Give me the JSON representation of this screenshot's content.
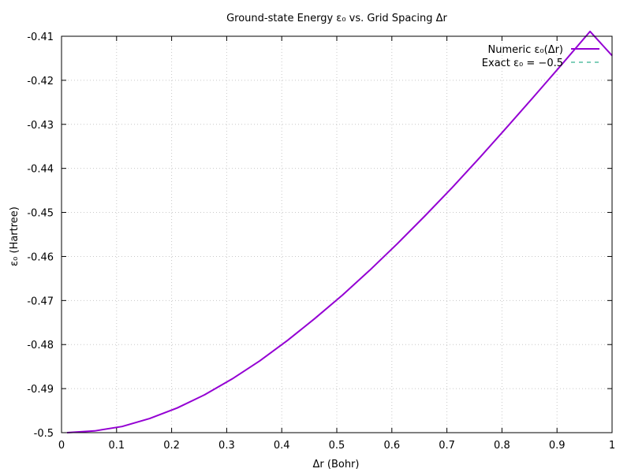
{
  "chart_data": {
    "type": "line",
    "title": "Ground-state Energy ε₀ vs. Grid Spacing Δr",
    "xlabel": "Δr (Bohr)",
    "ylabel": "ε₀ (Hartree)",
    "xlim": [
      0,
      1
    ],
    "ylim": [
      -0.5,
      -0.41
    ],
    "xticks": [
      0,
      0.1,
      0.2,
      0.3,
      0.4,
      0.5,
      0.6,
      0.7,
      0.8,
      0.9,
      1
    ],
    "xtick_labels": [
      "0",
      "0.1",
      "0.2",
      "0.3",
      "0.4",
      "0.5",
      "0.6",
      "0.7",
      "0.8",
      "0.9",
      "1"
    ],
    "yticks": [
      -0.5,
      -0.49,
      -0.48,
      -0.47,
      -0.46,
      -0.45,
      -0.44,
      -0.43,
      -0.42,
      -0.41
    ],
    "ytick_labels": [
      "-0.5",
      "-0.49",
      "-0.48",
      "-0.47",
      "-0.46",
      "-0.45",
      "-0.44",
      "-0.43",
      "-0.42",
      "-0.41"
    ],
    "grid": true,
    "legend_position": "top-right",
    "series": [
      {
        "name": "Numeric ε₀(Δr)",
        "color": "#9400d3",
        "style": "solid",
        "x": [
          0.01,
          0.06,
          0.11,
          0.16,
          0.21,
          0.26,
          0.31,
          0.36,
          0.41,
          0.46,
          0.51,
          0.56,
          0.61,
          0.66,
          0.71,
          0.76,
          0.81,
          0.86,
          0.91,
          0.96,
          1.0
        ],
        "y": [
          -0.5,
          -0.4996,
          -0.4986,
          -0.4968,
          -0.4944,
          -0.4914,
          -0.4878,
          -0.4837,
          -0.4791,
          -0.4741,
          -0.4688,
          -0.4631,
          -0.4571,
          -0.4508,
          -0.4443,
          -0.4375,
          -0.4305,
          -0.4234,
          -0.4162,
          -0.4089,
          -0.4144
        ]
      },
      {
        "name": "Exact ε₀ = −0.5",
        "color": "#009e73",
        "style": "dashed",
        "x": [
          0,
          1
        ],
        "y": [
          -0.5,
          -0.5
        ]
      }
    ]
  }
}
